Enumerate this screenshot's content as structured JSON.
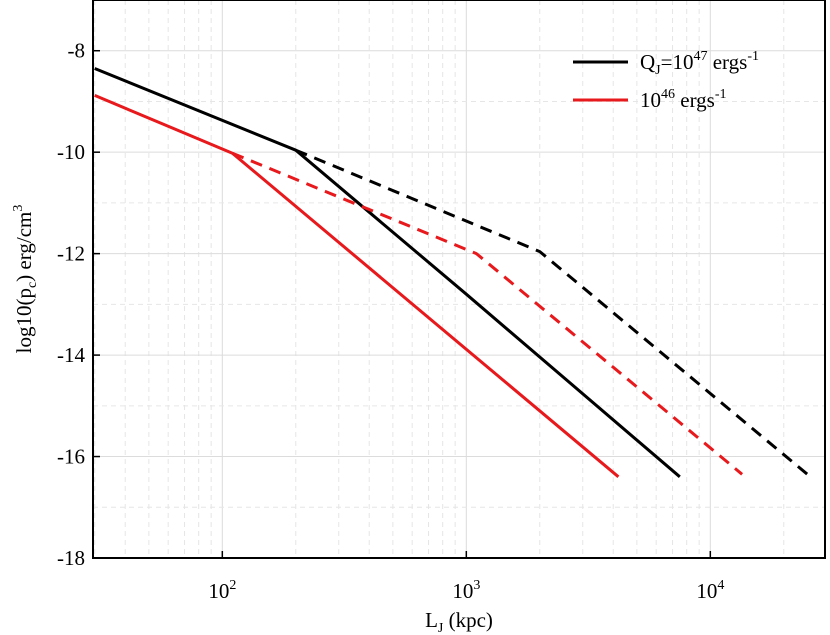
{
  "chart_data": {
    "type": "line",
    "title": "",
    "xlabel": "L",
    "xlabel_sub": "J",
    "xlabel_unit": " (kpc)",
    "ylabel": "log10(p",
    "ylabel_sub": "c",
    "ylabel_rest": ") erg/cm",
    "ylabel_sup": "3",
    "xscale": "log",
    "xlim_log10": [
      1.47,
      4.47
    ],
    "ylim": [
      -18,
      -7
    ],
    "x_ticks": [
      {
        "base": "10",
        "exp": "2",
        "log10": 2
      },
      {
        "base": "10",
        "exp": "3",
        "log10": 3
      },
      {
        "base": "10",
        "exp": "4",
        "log10": 4
      }
    ],
    "y_ticks": [
      {
        "label": "-8",
        "value": -8
      },
      {
        "label": "-10",
        "value": -10
      },
      {
        "label": "-12",
        "value": -12
      },
      {
        "label": "-14",
        "value": -14
      },
      {
        "label": "-16",
        "value": -16
      },
      {
        "label": "-18",
        "value": -18
      }
    ],
    "grid": true,
    "legend_position": "top-right",
    "legend": [
      {
        "parts": [
          {
            "t": "Q"
          },
          {
            "t": "J",
            "sub": true
          },
          {
            "t": "=10"
          },
          {
            "t": "47",
            "sup": true
          },
          {
            "t": " ergs"
          },
          {
            "t": "-1",
            "sup": true
          }
        ],
        "color": "#000000"
      },
      {
        "parts": [
          {
            "t": "10"
          },
          {
            "t": "46",
            "sup": true
          },
          {
            "t": " ergs"
          },
          {
            "t": "-1",
            "sup": true
          }
        ],
        "color": "#e8191c"
      }
    ],
    "series": [
      {
        "name": "QJ=1e47 solid",
        "color": "#000000",
        "dash": false,
        "points": [
          [
            30,
            -8.35
          ],
          [
            200,
            -9.96
          ],
          [
            1000,
            -12.8
          ],
          [
            7500,
            -16.4
          ]
        ]
      },
      {
        "name": "QJ=1e47 dashed",
        "color": "#000000",
        "dash": true,
        "points": [
          [
            200,
            -9.96
          ],
          [
            2000,
            -11.96
          ],
          [
            25000,
            -16.35
          ]
        ]
      },
      {
        "name": "QJ=1e46 solid",
        "color": "#e8191c",
        "dash": false,
        "points": [
          [
            30,
            -8.88
          ],
          [
            110,
            -10.02
          ],
          [
            4200,
            -16.4
          ]
        ]
      },
      {
        "name": "QJ=1e46 dashed",
        "color": "#e8191c",
        "dash": true,
        "points": [
          [
            110,
            -10.02
          ],
          [
            1100,
            -12.0
          ],
          [
            13500,
            -16.35
          ]
        ]
      }
    ]
  }
}
